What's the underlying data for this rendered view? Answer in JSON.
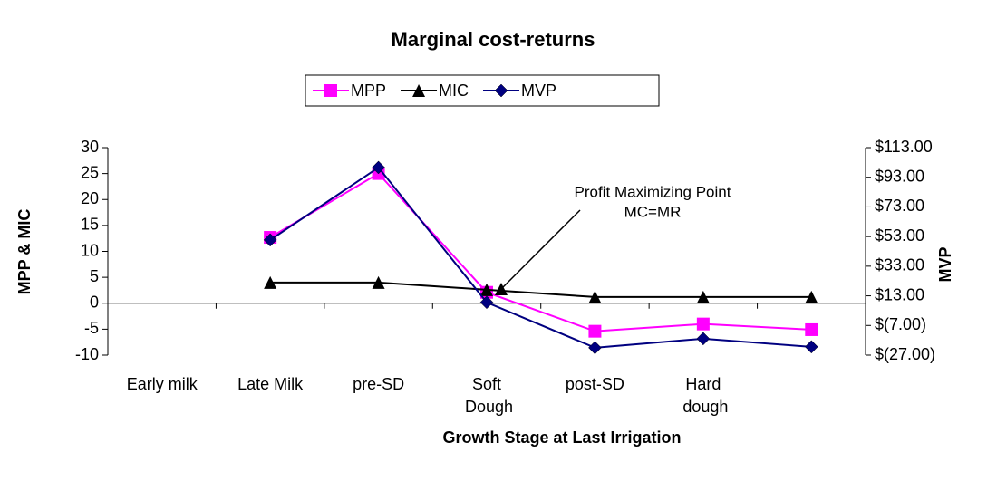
{
  "chart_data": {
    "type": "line",
    "title": "Marginal cost-returns",
    "x_label": "Growth Stage at Last Irrigation",
    "y_label": "MPP & MIC",
    "y2_label": "MVP",
    "categories": [
      "Early milk",
      "Late Milk",
      "pre-SD",
      "Soft Dough",
      "post-SD",
      "Hard dough",
      null
    ],
    "series": [
      {
        "name": "MPP",
        "color": "#ff00ff",
        "marker": "square",
        "values": [
          null,
          12.7,
          25,
          2.1,
          -5.4,
          -4,
          -5.1
        ]
      },
      {
        "name": "MIC",
        "color": "#000000",
        "marker": "triangle",
        "values": [
          null,
          4,
          4,
          2.6,
          1.2,
          1.2,
          1.2
        ]
      },
      {
        "name": "MVP",
        "color": "#000080",
        "marker": "diamond",
        "axis": "y2",
        "values": [
          null,
          50.7,
          99.6,
          8.6,
          -22,
          -15.9,
          -21.4
        ]
      }
    ],
    "ylim": [
      -10,
      30
    ],
    "yticks": [
      -10,
      -5,
      0,
      5,
      10,
      15,
      20,
      25,
      30
    ],
    "y2lim": [
      -27,
      113
    ],
    "y2ticks": [
      {
        "value": -27,
        "label": "$(27.00)"
      },
      {
        "value": -7,
        "label": "$(7.00)"
      },
      {
        "value": 13,
        "label": "$13.00"
      },
      {
        "value": 33,
        "label": "$33.00"
      },
      {
        "value": 53,
        "label": "$53.00"
      },
      {
        "value": 73,
        "label": "$73.00"
      },
      {
        "value": 93,
        "label": "$93.00"
      },
      {
        "value": 113,
        "label": "$113.00"
      }
    ],
    "annotation": {
      "lines": [
        "Profit Maximizing Point",
        "MC=MR"
      ]
    },
    "legend": "top"
  }
}
